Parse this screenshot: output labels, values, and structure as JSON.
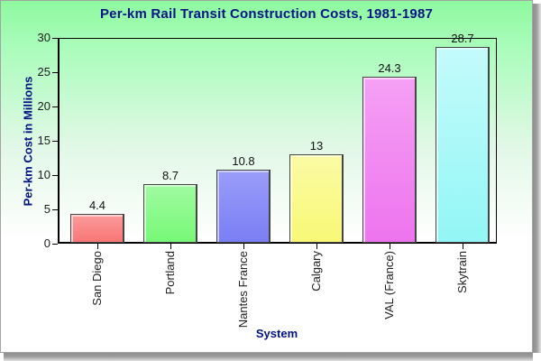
{
  "chart_data": {
    "type": "bar",
    "title": "Per-km Rail Transit Construction Costs, 1981-1987",
    "xlabel": "System",
    "ylabel": "Per-km Cost in Millions",
    "categories": [
      "San Diego",
      "Portland",
      "Nantes France",
      "Calgary",
      "VAL (France)",
      "Skytrain"
    ],
    "values": [
      4.4,
      8.7,
      10.8,
      13,
      24.3,
      28.7
    ],
    "value_labels": [
      "4.4",
      "8.7",
      "10.8",
      "13",
      "24.3",
      "28.7"
    ],
    "ylim": [
      0,
      30
    ],
    "yticks": [
      0,
      5,
      10,
      15,
      20,
      25,
      30
    ],
    "grid": false,
    "legend_position": "none",
    "bar_colors": [
      {
        "name": "salmon-red",
        "base": "#f97676",
        "top": "#fb9b9b",
        "highlight": "#ffd0d0"
      },
      {
        "name": "green",
        "base": "#77f877",
        "top": "#a0fba0",
        "highlight": "#d2ffd2"
      },
      {
        "name": "blue-violet",
        "base": "#7a7ef4",
        "top": "#9a9df8",
        "highlight": "#c9cbff"
      },
      {
        "name": "yellow",
        "base": "#f8f876",
        "top": "#fbfba5",
        "highlight": "#ffffd4"
      },
      {
        "name": "magenta",
        "base": "#ee74ee",
        "top": "#f5a0f5",
        "highlight": "#ffd1ff"
      },
      {
        "name": "cyan",
        "base": "#93f6f6",
        "top": "#c4fbfb",
        "highlight": "#dfffff"
      }
    ],
    "colors": {
      "title_text": "#001387",
      "axis_title_text": "#001387",
      "tick_text": "#1a1a1a",
      "background_top": "#8ef99f",
      "background_bottom": "#ffffff",
      "frame_border": "#a3a3a3"
    }
  }
}
